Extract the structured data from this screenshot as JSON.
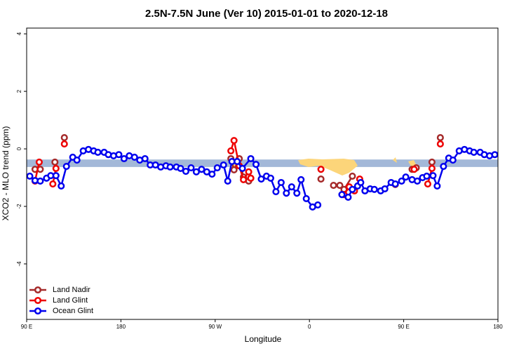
{
  "chart_data": {
    "type": "line",
    "title": "2.5N-7.5N June (Ver 10)   2015-01-01 to 2020-12-18",
    "x_label": "Longitude",
    "y_label": "XCO2 - MLO trend (ppm)",
    "xlim": [
      90,
      540
    ],
    "xticks": [
      {
        "value": 90,
        "label": "90 E"
      },
      {
        "value": 180,
        "label": "180"
      },
      {
        "value": 270,
        "label": "90 W"
      },
      {
        "value": 360,
        "label": "0"
      },
      {
        "value": 450,
        "label": "90 E"
      },
      {
        "value": 540,
        "label": "180"
      }
    ],
    "ylim": [
      -5.93,
      4.2
    ],
    "yticks": [
      -4,
      -2,
      0,
      2,
      4
    ],
    "band": [
      -0.63,
      -0.37
    ],
    "band_color": "#a3b8d8",
    "legend": "bottom-left",
    "series": [
      {
        "name": "Land Nadir",
        "color": "#a52a2a",
        "x": [
          98,
          103,
          null,
          117,
          null,
          126,
          null,
          285,
          288,
          293,
          297,
          302,
          304,
          null,
          371,
          null,
          383,
          389,
          393,
          401,
          null,
          442,
          null,
          458,
          462,
          null,
          477,
          null,
          485
        ],
        "values": [
          -0.71,
          -0.71,
          null,
          -0.46,
          null,
          0.39,
          null,
          -0.34,
          -0.73,
          -0.34,
          -0.98,
          -1.12,
          -1.02,
          null,
          -1.05,
          null,
          -1.27,
          -1.27,
          -1.41,
          -0.95,
          null,
          -1.24,
          null,
          -0.71,
          -0.66,
          null,
          -0.46,
          null,
          0.39
        ]
      },
      {
        "name": "Land Glint",
        "color": "#ee0000",
        "x": [
          98,
          102,
          null,
          115,
          118,
          null,
          126,
          null,
          285,
          288,
          293,
          297,
          302,
          304,
          null,
          371,
          null,
          393,
          398,
          403,
          408,
          null,
          460,
          null,
          473,
          477,
          null,
          485
        ],
        "values": [
          -1.12,
          -0.46,
          null,
          -1.22,
          -0.68,
          null,
          0.17,
          null,
          -0.07,
          0.29,
          -0.59,
          -1.07,
          -0.8,
          -1.02,
          null,
          -0.71,
          null,
          -1.59,
          -1.32,
          -1.46,
          -1.05,
          null,
          -0.71,
          null,
          -1.22,
          -0.68,
          null,
          0.17
        ]
      },
      {
        "name": "Ocean Glint",
        "color": "#0000ee",
        "x": [
          93,
          98,
          103,
          109,
          113,
          118,
          123,
          128,
          134,
          138,
          144,
          149,
          154,
          158,
          164,
          168,
          173,
          178,
          183,
          188,
          193,
          198,
          203,
          208,
          213,
          218,
          223,
          227,
          233,
          237,
          242,
          247,
          252,
          257,
          262,
          267,
          272,
          278,
          282,
          286,
          291,
          296,
          304,
          309,
          314,
          319,
          323,
          328,
          333,
          338,
          343,
          348,
          352,
          357,
          363,
          368,
          null,
          391,
          397,
          401,
          406,
          409,
          413,
          418,
          422,
          428,
          432,
          438,
          442,
          448,
          452,
          458,
          463,
          468,
          472,
          478,
          482,
          488,
          493,
          497,
          503,
          508,
          513,
          517,
          523,
          527,
          532,
          537
        ],
        "values": [
          -0.95,
          -1.1,
          -1.12,
          -1.02,
          -0.93,
          -0.93,
          -1.29,
          -0.61,
          -0.29,
          -0.39,
          -0.07,
          -0.02,
          -0.07,
          -0.12,
          -0.12,
          -0.2,
          -0.24,
          -0.2,
          -0.34,
          -0.24,
          -0.29,
          -0.39,
          -0.34,
          -0.56,
          -0.56,
          -0.63,
          -0.59,
          -0.63,
          -0.63,
          -0.68,
          -0.78,
          -0.66,
          -0.8,
          -0.71,
          -0.8,
          -0.88,
          -0.66,
          -0.56,
          -1.12,
          -0.44,
          -0.44,
          -0.68,
          -0.34,
          -0.54,
          -1.05,
          -0.95,
          -1.02,
          -1.49,
          -1.17,
          -1.54,
          -1.32,
          -1.54,
          -1.07,
          -1.73,
          -2.02,
          -1.95,
          null,
          -1.59,
          -1.68,
          -1.41,
          -1.29,
          -1.17,
          -1.46,
          -1.39,
          -1.41,
          -1.46,
          -1.39,
          -1.17,
          -1.22,
          -1.12,
          -0.98,
          -1.07,
          -1.12,
          -1.0,
          -0.95,
          -0.93,
          -1.29,
          -0.61,
          -0.32,
          -0.39,
          -0.07,
          -0.02,
          -0.07,
          -0.12,
          -0.12,
          -0.2,
          -0.24,
          -0.2
        ]
      }
    ]
  }
}
